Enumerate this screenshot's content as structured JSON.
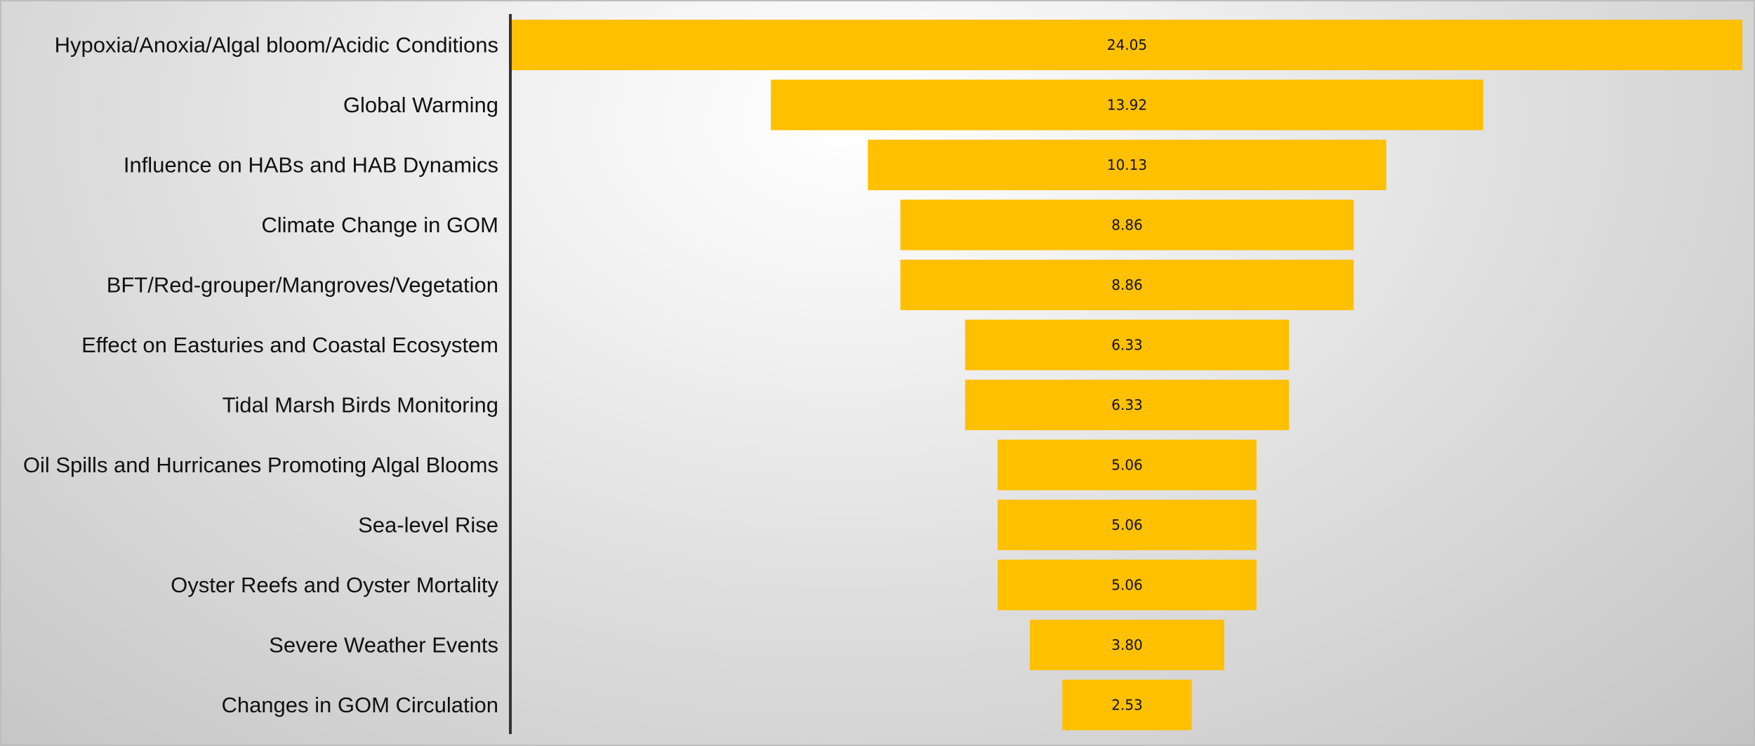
{
  "colors": {
    "bar": "#FFC000",
    "axis": "#333333",
    "text": "#111111"
  },
  "chart_data": {
    "type": "bar",
    "orientation": "horizontal",
    "style": "funnel",
    "categories": [
      "Hypoxia/Anoxia/Algal bloom/Acidic Conditions",
      "Global Warming",
      "Influence on HABs and HAB Dynamics",
      "Climate Change in GOM",
      "BFT/Red-grouper/Mangroves/Vegetation",
      "Effect on Easturies and Coastal Ecosystem",
      "Tidal Marsh Birds Monitoring",
      "Oil Spills and Hurricanes Promoting Algal Blooms",
      "Sea-level Rise",
      "Oyster Reefs and Oyster Mortality",
      "Severe Weather Events",
      "Changes in GOM Circulation"
    ],
    "values": [
      24.05,
      13.92,
      10.13,
      8.86,
      8.86,
      6.33,
      6.33,
      5.06,
      5.06,
      5.06,
      3.8,
      2.53
    ],
    "data_labels": [
      "24.05",
      "13.92",
      "10.13",
      "8.86",
      "8.86",
      "6.33",
      "6.33",
      "5.06",
      "5.06",
      "5.06",
      "3.80",
      "2.53"
    ],
    "title": "",
    "xlabel": "",
    "ylabel": "",
    "xlim": [
      0,
      24.05
    ],
    "grid": false,
    "legend": "none"
  }
}
